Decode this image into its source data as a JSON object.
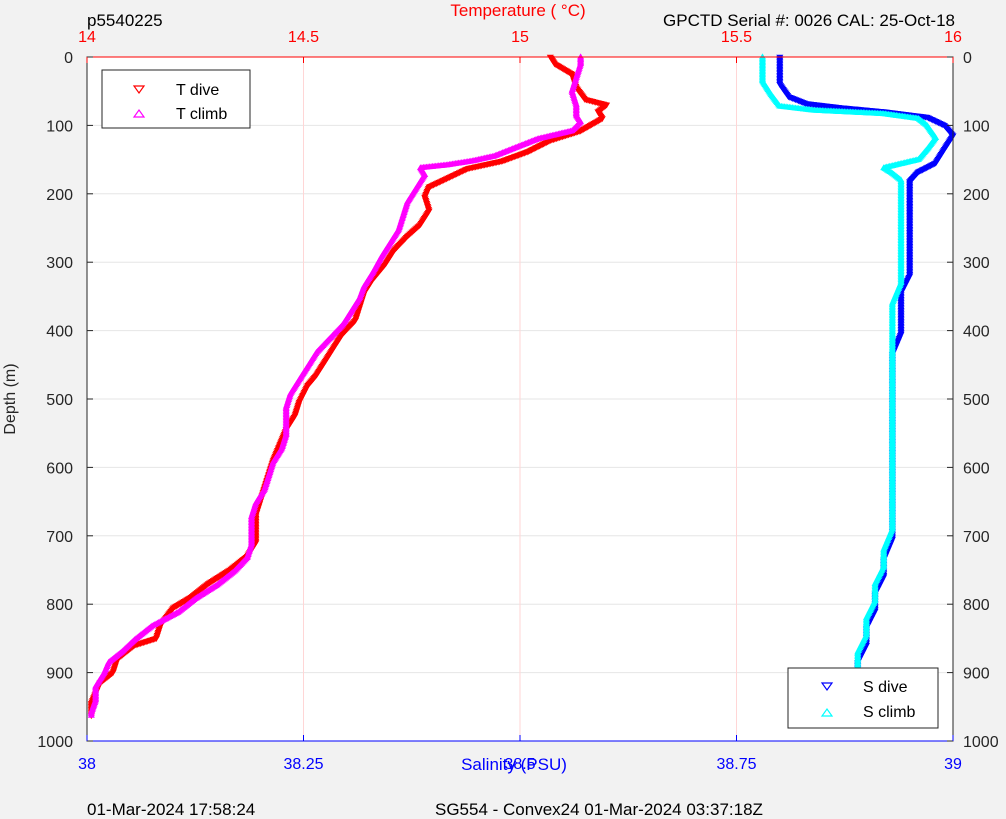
{
  "header": {
    "left": "p5540225",
    "right": "GPCTD Serial #: 0026 CAL: 25-Oct-18"
  },
  "footer": {
    "left": "01-Mar-2024 17:58:24",
    "center": "SG554 - Convex24 01-Mar-2024 03:37:18Z"
  },
  "colors": {
    "t_dive": "#ff0000",
    "t_climb": "#ff00ff",
    "s_dive": "#0000ff",
    "s_climb": "#00ffff",
    "temp_axis": "#ff0000",
    "sal_axis": "#0000ff"
  },
  "chart_data": {
    "type": "scatter",
    "y_axis": {
      "label": "Depth (m)",
      "range": [
        0,
        1000
      ],
      "reversed": true,
      "ticks": [
        0,
        100,
        200,
        300,
        400,
        500,
        600,
        700,
        800,
        900,
        1000
      ]
    },
    "x_top": {
      "label": "Temperature (   °C)",
      "range": [
        14,
        16
      ],
      "ticks": [
        "14",
        "14.5",
        "15",
        "15.5",
        "16"
      ]
    },
    "x_bottom": {
      "label": "Salinity (PSU)",
      "range": [
        38,
        39
      ],
      "ticks": [
        "38",
        "38.25",
        "38.5",
        "38.75",
        "39"
      ]
    },
    "legend_temp": {
      "position": "top-left",
      "entries": [
        "T dive",
        "T climb"
      ]
    },
    "legend_sal": {
      "position": "bottom-right",
      "entries": [
        "S dive",
        "S climb"
      ]
    },
    "series": [
      {
        "name": "T dive",
        "axis": "temperature",
        "points": [
          [
            15.07,
            0
          ],
          [
            15.08,
            10
          ],
          [
            15.12,
            25
          ],
          [
            15.13,
            45
          ],
          [
            15.15,
            62
          ],
          [
            15.2,
            70
          ],
          [
            15.18,
            80
          ],
          [
            15.19,
            90
          ],
          [
            15.14,
            108
          ],
          [
            15.07,
            122
          ],
          [
            15.02,
            138
          ],
          [
            14.96,
            152
          ],
          [
            14.88,
            163
          ],
          [
            14.84,
            175
          ],
          [
            14.79,
            190
          ],
          [
            14.78,
            205
          ],
          [
            14.79,
            225
          ],
          [
            14.77,
            245
          ],
          [
            14.74,
            262
          ],
          [
            14.71,
            282
          ],
          [
            14.69,
            302
          ],
          [
            14.66,
            325
          ],
          [
            14.64,
            345
          ],
          [
            14.63,
            365
          ],
          [
            14.62,
            385
          ],
          [
            14.59,
            405
          ],
          [
            14.57,
            425
          ],
          [
            14.55,
            445
          ],
          [
            14.53,
            465
          ],
          [
            14.51,
            480
          ],
          [
            14.49,
            505
          ],
          [
            14.48,
            525
          ],
          [
            14.46,
            545
          ],
          [
            14.45,
            560
          ],
          [
            14.44,
            575
          ],
          [
            14.43,
            590
          ],
          [
            14.42,
            610
          ],
          [
            14.41,
            630
          ],
          [
            14.4,
            650
          ],
          [
            14.39,
            670
          ],
          [
            14.39,
            690
          ],
          [
            14.39,
            710
          ],
          [
            14.37,
            730
          ],
          [
            14.33,
            750
          ],
          [
            14.28,
            770
          ],
          [
            14.24,
            790
          ],
          [
            14.2,
            805
          ],
          [
            14.17,
            830
          ],
          [
            14.16,
            850
          ],
          [
            14.11,
            860
          ],
          [
            14.07,
            880
          ],
          [
            14.06,
            900
          ],
          [
            14.03,
            915
          ],
          [
            14.02,
            930
          ],
          [
            14.01,
            945
          ],
          [
            14.01,
            965
          ]
        ]
      },
      {
        "name": "T climb",
        "axis": "temperature",
        "points": [
          [
            15.14,
            0
          ],
          [
            15.14,
            10
          ],
          [
            15.13,
            30
          ],
          [
            15.12,
            50
          ],
          [
            15.13,
            70
          ],
          [
            15.13,
            85
          ],
          [
            15.14,
            95
          ],
          [
            15.12,
            108
          ],
          [
            15.04,
            120
          ],
          [
            14.98,
            135
          ],
          [
            14.94,
            145
          ],
          [
            14.89,
            152
          ],
          [
            14.83,
            158
          ],
          [
            14.77,
            162
          ],
          [
            14.78,
            172
          ],
          [
            14.76,
            192
          ],
          [
            14.74,
            212
          ],
          [
            14.73,
            232
          ],
          [
            14.72,
            252
          ],
          [
            14.7,
            272
          ],
          [
            14.68,
            292
          ],
          [
            14.66,
            315
          ],
          [
            14.64,
            335
          ],
          [
            14.63,
            352
          ],
          [
            14.61,
            372
          ],
          [
            14.59,
            392
          ],
          [
            14.56,
            412
          ],
          [
            14.53,
            432
          ],
          [
            14.51,
            452
          ],
          [
            14.49,
            472
          ],
          [
            14.47,
            492
          ],
          [
            14.46,
            512
          ],
          [
            14.46,
            532
          ],
          [
            14.46,
            552
          ],
          [
            14.45,
            572
          ],
          [
            14.43,
            592
          ],
          [
            14.42,
            612
          ],
          [
            14.41,
            632
          ],
          [
            14.39,
            652
          ],
          [
            14.38,
            672
          ],
          [
            14.38,
            692
          ],
          [
            14.38,
            712
          ],
          [
            14.37,
            732
          ],
          [
            14.34,
            752
          ],
          [
            14.3,
            772
          ],
          [
            14.25,
            792
          ],
          [
            14.21,
            812
          ],
          [
            14.15,
            832
          ],
          [
            14.11,
            852
          ],
          [
            14.08,
            870
          ],
          [
            14.05,
            885
          ],
          [
            14.04,
            900
          ],
          [
            14.02,
            920
          ],
          [
            14.02,
            940
          ],
          [
            14.01,
            958
          ],
          [
            14.01,
            965
          ]
        ]
      },
      {
        "name": "S dive",
        "axis": "salinity",
        "points": [
          [
            38.8,
            0
          ],
          [
            38.8,
            20
          ],
          [
            38.8,
            40
          ],
          [
            38.81,
            58
          ],
          [
            38.83,
            68
          ],
          [
            38.87,
            74
          ],
          [
            38.92,
            80
          ],
          [
            38.97,
            88
          ],
          [
            38.99,
            100
          ],
          [
            39.0,
            115
          ],
          [
            38.99,
            135
          ],
          [
            38.98,
            155
          ],
          [
            38.96,
            168
          ],
          [
            38.95,
            182
          ],
          [
            38.95,
            205
          ],
          [
            38.95,
            225
          ],
          [
            38.95,
            245
          ],
          [
            38.95,
            270
          ],
          [
            38.95,
            295
          ],
          [
            38.95,
            320
          ],
          [
            38.94,
            345
          ],
          [
            38.94,
            375
          ],
          [
            38.94,
            405
          ],
          [
            38.93,
            435
          ],
          [
            38.93,
            465
          ],
          [
            38.93,
            495
          ],
          [
            38.93,
            525
          ],
          [
            38.93,
            555
          ],
          [
            38.93,
            585
          ],
          [
            38.93,
            615
          ],
          [
            38.93,
            645
          ],
          [
            38.93,
            675
          ],
          [
            38.93,
            705
          ],
          [
            38.92,
            735
          ],
          [
            38.92,
            760
          ],
          [
            38.91,
            785
          ],
          [
            38.91,
            810
          ],
          [
            38.9,
            835
          ],
          [
            38.9,
            860
          ],
          [
            38.89,
            885
          ],
          [
            38.89,
            910
          ],
          [
            38.88,
            935
          ],
          [
            38.88,
            965
          ]
        ]
      },
      {
        "name": "S climb",
        "axis": "salinity",
        "points": [
          [
            38.78,
            0
          ],
          [
            38.78,
            15
          ],
          [
            38.78,
            35
          ],
          [
            38.79,
            55
          ],
          [
            38.8,
            72
          ],
          [
            38.84,
            78
          ],
          [
            38.92,
            83
          ],
          [
            38.96,
            90
          ],
          [
            38.97,
            100
          ],
          [
            38.98,
            118
          ],
          [
            38.97,
            135
          ],
          [
            38.96,
            150
          ],
          [
            38.92,
            162
          ],
          [
            38.93,
            170
          ],
          [
            38.94,
            180
          ],
          [
            38.94,
            205
          ],
          [
            38.94,
            230
          ],
          [
            38.94,
            255
          ],
          [
            38.94,
            280
          ],
          [
            38.94,
            305
          ],
          [
            38.94,
            330
          ],
          [
            38.93,
            360
          ],
          [
            38.93,
            390
          ],
          [
            38.93,
            420
          ],
          [
            38.93,
            450
          ],
          [
            38.93,
            480
          ],
          [
            38.93,
            510
          ],
          [
            38.93,
            540
          ],
          [
            38.93,
            570
          ],
          [
            38.93,
            600
          ],
          [
            38.93,
            630
          ],
          [
            38.93,
            660
          ],
          [
            38.93,
            690
          ],
          [
            38.92,
            720
          ],
          [
            38.92,
            745
          ],
          [
            38.91,
            770
          ],
          [
            38.91,
            795
          ],
          [
            38.9,
            820
          ],
          [
            38.9,
            845
          ],
          [
            38.89,
            870
          ],
          [
            38.89,
            895
          ],
          [
            38.88,
            920
          ],
          [
            38.88,
            945
          ],
          [
            38.88,
            965
          ]
        ]
      }
    ]
  }
}
